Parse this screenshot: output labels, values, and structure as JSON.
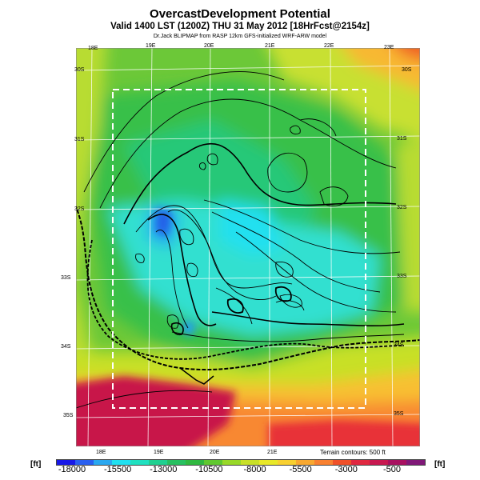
{
  "title": "OvercastDevelopment Potential",
  "subtitle": "Valid 1400 LST (1200Z) THU 31 May 2012 [18HrFcst@2154z]",
  "credit": "Dr.Jack BLIPMAP from RASP 12km GFS-initialized WRF-ARW model",
  "top_lon_labels": [
    "18E",
    "19E",
    "20E",
    "21E",
    "22E",
    "23E"
  ],
  "bottom_lon_labels": [
    "18E",
    "19E",
    "20E",
    "21E"
  ],
  "left_lat_labels": [
    "30S",
    "31S",
    "32S",
    "33S",
    "34S",
    "35S"
  ],
  "right_lat_labels": [
    "30S",
    "31S",
    "32S",
    "33S",
    "34S",
    "35S"
  ],
  "terrain_note": "Terrain contours: 500 ft",
  "unit_label": "[ft]",
  "colorbar": {
    "tick_labels": [
      "-18000",
      "-15500",
      "-13000",
      "-10500",
      "-8000",
      "-5500",
      "-3000",
      "-500"
    ],
    "colors": [
      "#1818e8",
      "#2a60f0",
      "#2aa8f0",
      "#20e0f0",
      "#20e0c0",
      "#20d090",
      "#28c060",
      "#30b840",
      "#60c830",
      "#98d828",
      "#c8e028",
      "#e8e828",
      "#f8d030",
      "#f8a830",
      "#f88030",
      "#f05028",
      "#e02840",
      "#c81850",
      "#a81060",
      "#801878"
    ]
  }
}
